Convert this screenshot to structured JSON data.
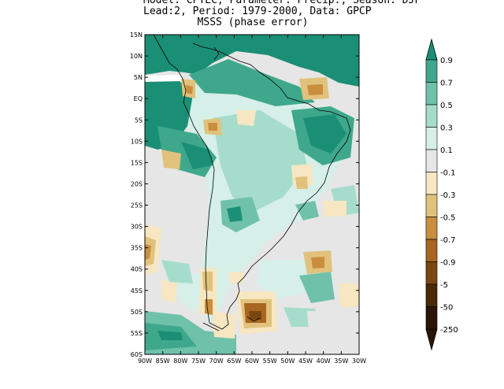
{
  "title": {
    "line1": "Model: CPTEC, Parameter: Precip., Season: DJF",
    "line2": "Lead:2, Period: 1979-2000, Data: GPCP",
    "line3": "MSSS (phase error)"
  },
  "lat_labels": [
    "15N",
    "10N",
    "5N",
    "EQ",
    "5S",
    "10S",
    "15S",
    "20S",
    "25S",
    "30S",
    "35S",
    "40S",
    "45S",
    "50S",
    "55S",
    "60S"
  ],
  "lon_labels": [
    "90W",
    "85W",
    "80W",
    "75W",
    "70W",
    "65W",
    "60W",
    "55W",
    "50W",
    "45W",
    "40W",
    "35W",
    "30W"
  ],
  "colorbar": {
    "labels": [
      "0.9",
      "0.7",
      "0.5",
      "0.3",
      "0.1",
      "-0.1",
      "-0.3",
      "-0.5",
      "-0.7",
      "-0.9",
      "-5",
      "-50",
      "-250"
    ],
    "colors": [
      "#1b8f75",
      "#3fa88c",
      "#6fc1aa",
      "#a6dccb",
      "#d6efe8",
      "#e6e6e6",
      "#f6e6c2",
      "#e1c27c",
      "#c98e3e",
      "#a86620",
      "#7a4612",
      "#4a2a08",
      "#2a1604"
    ]
  }
}
